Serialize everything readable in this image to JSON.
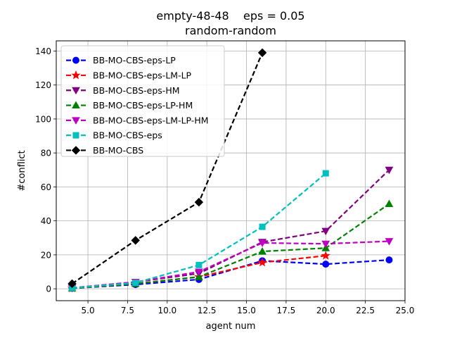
{
  "chart_data": {
    "type": "line",
    "title_line1": "empty-48-48    eps = 0.05",
    "title_line2": "random-random",
    "xlabel": "agent num",
    "ylabel": "#conflict",
    "xlim": [
      3.0,
      25.0
    ],
    "ylim": [
      -7,
      146
    ],
    "grid": true,
    "legend_position": "top-left",
    "xticks": [
      5.0,
      7.5,
      10.0,
      12.5,
      15.0,
      17.5,
      20.0,
      22.5,
      25.0
    ],
    "xtick_labels": [
      "5.0",
      "7.5",
      "10.0",
      "12.5",
      "15.0",
      "17.5",
      "20.0",
      "22.5",
      "25.0"
    ],
    "yticks": [
      0,
      20,
      40,
      60,
      80,
      100,
      120,
      140
    ],
    "ytick_labels": [
      "0",
      "20",
      "40",
      "60",
      "80",
      "100",
      "120",
      "140"
    ],
    "series": [
      {
        "name": "BB-MO-CBS-eps-LP",
        "color": "#0000ff",
        "marker": "circle",
        "x": [
          4,
          8,
          12,
          16,
          20,
          24
        ],
        "y": [
          0.3,
          2.5,
          5.5,
          16.5,
          14.5,
          17
        ]
      },
      {
        "name": "BB-MO-CBS-eps-LM-LP",
        "color": "#ff0000",
        "marker": "star",
        "x": [
          4,
          8,
          12,
          16,
          20
        ],
        "y": [
          0.3,
          3,
          7,
          15.5,
          19.5
        ]
      },
      {
        "name": "BB-MO-CBS-eps-HM",
        "color": "#800080",
        "marker": "triangle-down",
        "x": [
          4,
          8,
          12,
          16,
          20,
          24
        ],
        "y": [
          0.5,
          4,
          9,
          27.5,
          34,
          70
        ]
      },
      {
        "name": "BB-MO-CBS-eps-LP-HM",
        "color": "#008000",
        "marker": "triangle-up",
        "x": [
          4,
          8,
          12,
          16,
          20,
          24
        ],
        "y": [
          0.3,
          3,
          7,
          22,
          24,
          50
        ]
      },
      {
        "name": "BB-MO-CBS-eps-LM-LP-HM",
        "color": "#c000c0",
        "marker": "triangle-down",
        "x": [
          4,
          8,
          12,
          16,
          20,
          24
        ],
        "y": [
          0.5,
          4,
          10,
          27,
          26.5,
          28
        ]
      },
      {
        "name": "BB-MO-CBS-eps",
        "color": "#00bfbf",
        "marker": "square",
        "x": [
          4,
          8,
          12,
          16,
          20
        ],
        "y": [
          0.5,
          3.5,
          14,
          36.5,
          68
        ]
      },
      {
        "name": "BB-MO-CBS",
        "color": "#000000",
        "marker": "diamond",
        "x": [
          4,
          8,
          12,
          16
        ],
        "y": [
          3,
          28.5,
          51,
          139
        ]
      }
    ]
  }
}
